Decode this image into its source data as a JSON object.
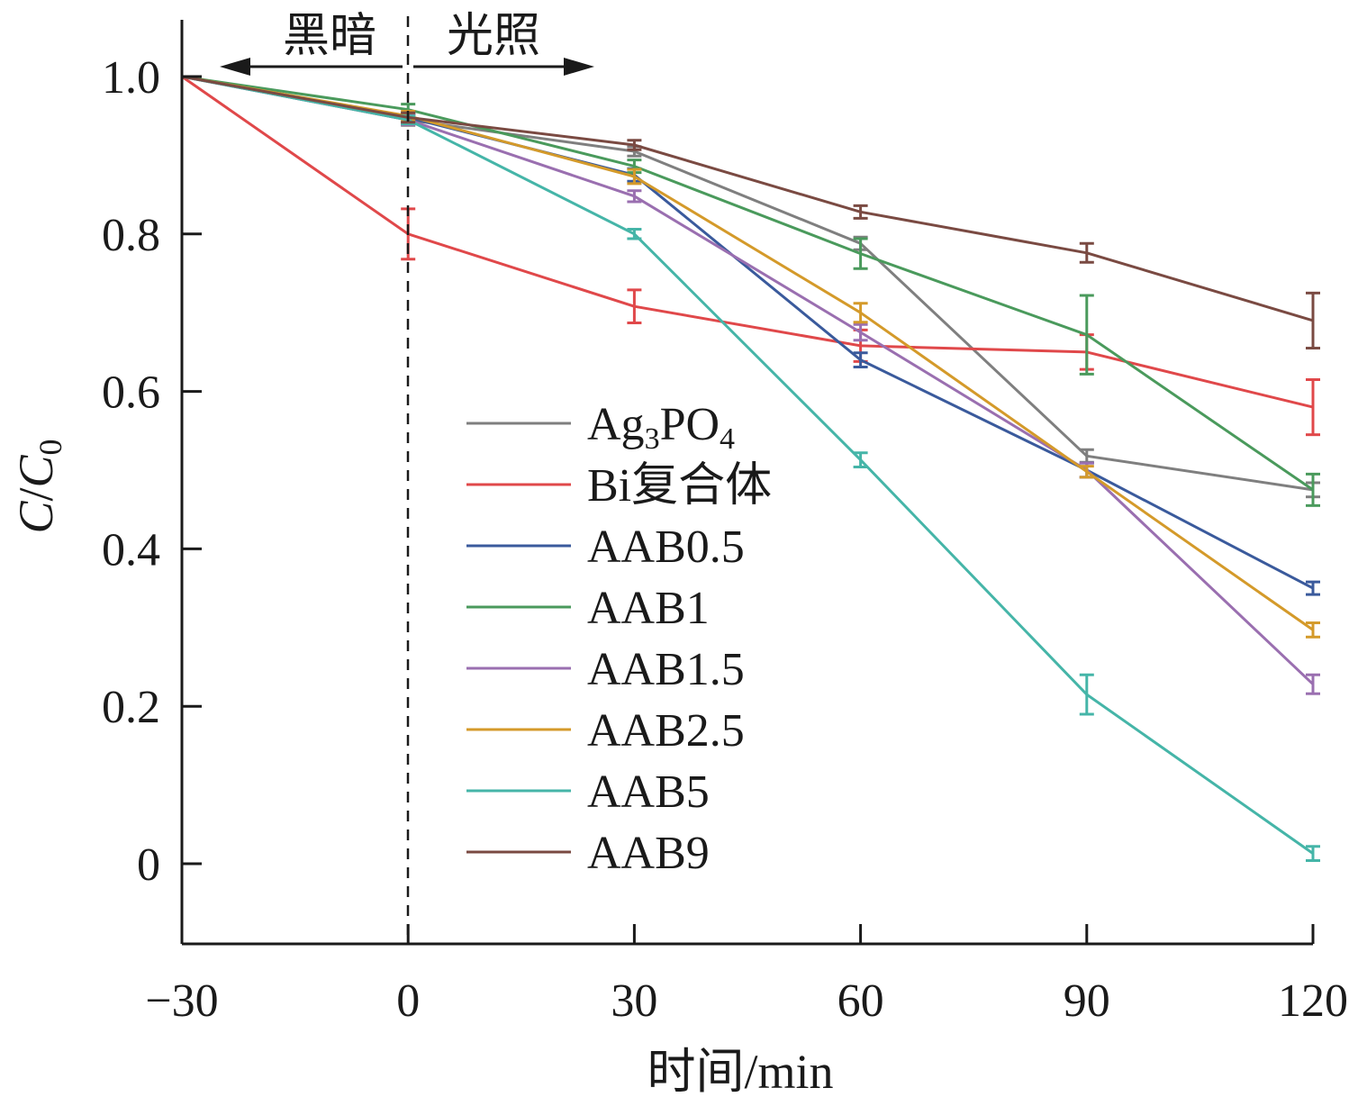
{
  "chart_data": {
    "type": "line",
    "xlabel": "时间/min",
    "ylabel": "C/C0",
    "xlim": [
      -30,
      120
    ],
    "ylim": [
      -0.1,
      1.08
    ],
    "x_ticks": [
      -30,
      0,
      30,
      60,
      90,
      120
    ],
    "x_tick_labels": [
      "−30",
      "0",
      "30",
      "60",
      "90",
      "120"
    ],
    "y_ticks": [
      0,
      0.2,
      0.4,
      0.6,
      0.8,
      1.0
    ],
    "y_tick_labels": [
      "0",
      "0.2",
      "0.4",
      "0.6",
      "0.8",
      "1.0"
    ],
    "grid": false,
    "legend_position": "center",
    "phase_divider_x": 0,
    "phase_labels": {
      "dark": "黑暗",
      "light": "光照"
    },
    "x": [
      -30,
      0,
      30,
      60,
      90,
      120
    ],
    "series": [
      {
        "name": "Ag3PO4",
        "label_main": "Ag",
        "label_sub1": "3",
        "label_mid": "PO",
        "label_sub2": "4",
        "color": "#7f7f7f",
        "values": [
          1.0,
          0.945,
          0.905,
          0.788,
          0.518,
          0.475
        ],
        "errors": [
          0,
          0.007,
          0.006,
          0.008,
          0.008,
          0.009
        ]
      },
      {
        "name": "Bi复合体",
        "color": "#e0484a",
        "values": [
          1.0,
          0.8,
          0.708,
          0.658,
          0.65,
          0.58
        ],
        "errors": [
          0,
          0.032,
          0.021,
          0.02,
          0.022,
          0.035
        ]
      },
      {
        "name": "AAB0.5",
        "color": "#3a5a9c",
        "values": [
          1.0,
          0.948,
          0.875,
          0.64,
          0.5,
          0.35
        ],
        "errors": [
          0,
          0.006,
          0.008,
          0.009,
          0.009,
          0.008
        ]
      },
      {
        "name": "AAB1",
        "color": "#4a9a5c",
        "values": [
          1.0,
          0.958,
          0.886,
          0.775,
          0.672,
          0.475
        ],
        "errors": [
          0,
          0.007,
          0.008,
          0.019,
          0.05,
          0.02
        ]
      },
      {
        "name": "AAB1.5",
        "color": "#9a6fb0",
        "values": [
          1.0,
          0.945,
          0.848,
          0.675,
          0.5,
          0.228
        ],
        "errors": [
          0,
          0.006,
          0.007,
          0.01,
          0.009,
          0.012
        ]
      },
      {
        "name": "AAB2.5",
        "color": "#d49a2a",
        "values": [
          1.0,
          0.95,
          0.873,
          0.7,
          0.498,
          0.297
        ],
        "errors": [
          0,
          0.006,
          0.009,
          0.012,
          0.007,
          0.009
        ]
      },
      {
        "name": "AAB5",
        "color": "#45b5a8",
        "values": [
          1.0,
          0.945,
          0.8,
          0.513,
          0.215,
          0.013
        ],
        "errors": [
          0,
          0.005,
          0.006,
          0.009,
          0.025,
          0.009
        ]
      },
      {
        "name": "AAB9",
        "color": "#7a4a42",
        "values": [
          1.0,
          0.948,
          0.913,
          0.828,
          0.776,
          0.69
        ],
        "errors": [
          0,
          0.006,
          0.006,
          0.008,
          0.012,
          0.035
        ]
      }
    ]
  }
}
